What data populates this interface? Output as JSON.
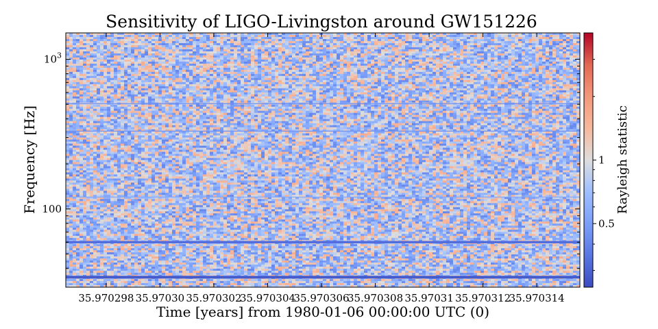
{
  "chart_data": {
    "type": "heatmap",
    "title": "Sensitivity of LIGO-Livingston around GW151226",
    "xlabel": "Time [years] from 1980-01-06 00:00:00 UTC (0)",
    "ylabel": "Frequency [Hz]",
    "x_ticks": [
      {
        "value": 35.970298,
        "label": "35.970298"
      },
      {
        "value": 35.9703,
        "label": "35.97030"
      },
      {
        "value": 35.970302,
        "label": "35.970302"
      },
      {
        "value": 35.970304,
        "label": "35.970304"
      },
      {
        "value": 35.970306,
        "label": "35.970306"
      },
      {
        "value": 35.970308,
        "label": "35.970308"
      },
      {
        "value": 35.97031,
        "label": "35.97031"
      },
      {
        "value": 35.970312,
        "label": "35.970312"
      },
      {
        "value": 35.970314,
        "label": "35.970314"
      }
    ],
    "xlim": [
      35.9702965,
      35.9703156
    ],
    "y_scale": "log",
    "ylim": [
      30,
      1500
    ],
    "y_ticks": [
      {
        "value": 100,
        "label": "100"
      },
      {
        "value": 1000,
        "label": "10^3"
      }
    ],
    "colorbar": {
      "label": "Rayleigh statistic",
      "scale": "log",
      "colormap": "coolwarm",
      "range": [
        0.25,
        4
      ],
      "ticks": [
        {
          "value": 0.5,
          "label": "0.5"
        },
        {
          "value": 1,
          "label": "1"
        }
      ]
    },
    "z_summary": {
      "typical_range": [
        0.4,
        1.6
      ],
      "low_lines": [
        {
          "frequency_hz": 35,
          "value": 0.28
        },
        {
          "frequency_hz": 60,
          "value": 0.33
        },
        {
          "frequency_hz": 120,
          "value": 0.55
        },
        {
          "frequency_hz": 331,
          "value": 0.45
        },
        {
          "frequency_hz": 505,
          "value": 0.45
        }
      ]
    },
    "colors": {
      "cold": "#3b4cc0",
      "neutral": "#dddddd",
      "hot": "#b40426"
    }
  }
}
